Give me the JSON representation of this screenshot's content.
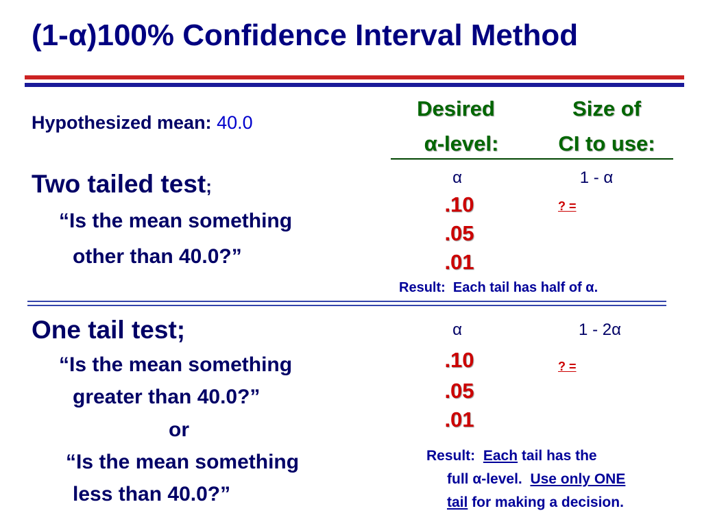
{
  "title": "(1-α)100% Confidence Interval Method",
  "hypothesis": {
    "label": "Hypothesized mean:",
    "value": "40.0"
  },
  "columns": {
    "desired": [
      "Desired",
      "α-level:"
    ],
    "size": [
      "Size of",
      "CI to use:"
    ]
  },
  "two_tailed": {
    "heading": "Two tailed test",
    "punct": ";",
    "questions": [
      "“Is the mean something",
      "other than 40.0?”"
    ],
    "alpha": "α",
    "formula": "1 - α",
    "levels": [
      ".10",
      ".05",
      ".01"
    ],
    "answer": "? =",
    "result": "Result:  Each tail has half of α."
  },
  "one_tailed": {
    "heading": "One tail test;",
    "questions": [
      "“Is the mean something",
      "greater than 40.0?”",
      "or",
      "“Is the mean something",
      "less than 40.0?”"
    ],
    "alpha": "α",
    "formula": "1 - 2α",
    "levels": [
      ".10",
      ".05",
      ".01"
    ],
    "answer": "? =",
    "result": [
      [
        "Result:",
        "Each",
        "tail has the"
      ],
      [
        "full α-level.",
        "Use only ONE"
      ],
      [
        "tail",
        "for making a decision."
      ]
    ]
  }
}
